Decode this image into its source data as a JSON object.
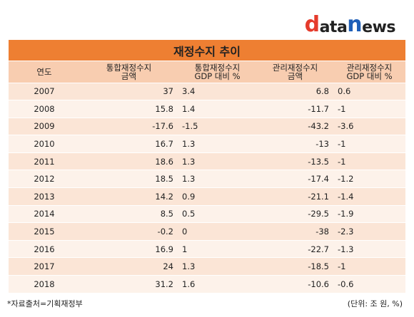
{
  "logo": {
    "d": "d",
    "a": "ata",
    "n": "n",
    "rest": "ews"
  },
  "title": "재정수지 추이",
  "headers": {
    "year": "연도",
    "integrated_amount": [
      "통합재정수지",
      "금액"
    ],
    "integrated_gdp": [
      "통합재정수지",
      "GDP 대비 %"
    ],
    "managed_amount": [
      "관리재정수지",
      "금액"
    ],
    "managed_gdp": [
      "관리재정수지",
      "GDP 대비 %"
    ]
  },
  "rows": [
    {
      "year": "2007",
      "integrated_amount": "37",
      "integrated_gdp": "3.4",
      "managed_amount": "6.8",
      "managed_gdp": "0.6"
    },
    {
      "year": "2008",
      "integrated_amount": "15.8",
      "integrated_gdp": "1.4",
      "managed_amount": "-11.7",
      "managed_gdp": "-1"
    },
    {
      "year": "2009",
      "integrated_amount": "-17.6",
      "integrated_gdp": "-1.5",
      "managed_amount": "-43.2",
      "managed_gdp": "-3.6"
    },
    {
      "year": "2010",
      "integrated_amount": "16.7",
      "integrated_gdp": "1.3",
      "managed_amount": "-13",
      "managed_gdp": "-1"
    },
    {
      "year": "2011",
      "integrated_amount": "18.6",
      "integrated_gdp": "1.3",
      "managed_amount": "-13.5",
      "managed_gdp": "-1"
    },
    {
      "year": "2012",
      "integrated_amount": "18.5",
      "integrated_gdp": "1.3",
      "managed_amount": "-17.4",
      "managed_gdp": "-1.2"
    },
    {
      "year": "2013",
      "integrated_amount": "14.2",
      "integrated_gdp": "0.9",
      "managed_amount": "-21.1",
      "managed_gdp": "-1.4"
    },
    {
      "year": "2014",
      "integrated_amount": "8.5",
      "integrated_gdp": "0.5",
      "managed_amount": "-29.5",
      "managed_gdp": "-1.9"
    },
    {
      "year": "2015",
      "integrated_amount": "-0.2",
      "integrated_gdp": "0",
      "managed_amount": "-38",
      "managed_gdp": "-2.3"
    },
    {
      "year": "2016",
      "integrated_amount": "16.9",
      "integrated_gdp": "1",
      "managed_amount": "-22.7",
      "managed_gdp": "-1.3"
    },
    {
      "year": "2017",
      "integrated_amount": "24",
      "integrated_gdp": "1.3",
      "managed_amount": "-18.5",
      "managed_gdp": "-1"
    },
    {
      "year": "2018",
      "integrated_amount": "31.2",
      "integrated_gdp": "1.6",
      "managed_amount": "-10.6",
      "managed_gdp": "-0.6"
    }
  ],
  "footer": {
    "source": "*자료출처=기획재정부",
    "unit": "(단위: 조 원, %)"
  },
  "colors": {
    "title_bar": "#ee7f32",
    "header_bg": "#f8cdb0",
    "row_odd": "#fbe5d6",
    "row_even": "#fdf2ea",
    "logo_d": "#e53b2c",
    "logo_n": "#1f5fb8"
  }
}
